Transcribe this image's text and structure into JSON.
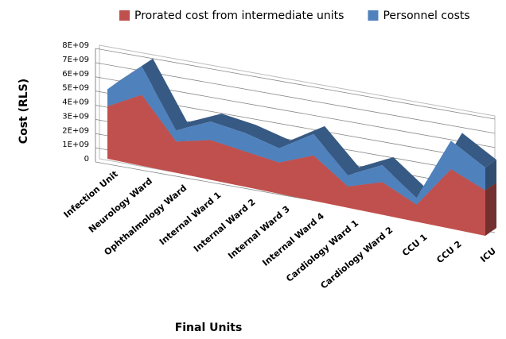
{
  "chart_data": {
    "type": "area3d",
    "categories": [
      "Infection Unit",
      "Neurology Ward",
      "Ophthalmology Ward",
      "Internal Ward 1",
      "Internal Ward 2",
      "Internal Ward 3",
      "Internal Ward 4",
      "Cardiology Ward 1",
      "Cardiology Ward 2",
      "CCU 1",
      "CCU 2",
      "ICU"
    ],
    "series": [
      {
        "name": "Prorated cost from intermediate units",
        "color": "#c0504d",
        "values": [
          3700000000,
          5000000000,
          2200000000,
          2800000000,
          2500000000,
          2200000000,
          3200000000,
          1500000000,
          2300000000,
          1200000000,
          4200000000,
          3200000000
        ]
      },
      {
        "name": "Personnel costs",
        "color": "#4f81bd",
        "values": [
          1200000000,
          2000000000,
          800000000,
          1300000000,
          1300000000,
          1000000000,
          1500000000,
          800000000,
          1200000000,
          500000000,
          2000000000,
          1600000000
        ]
      }
    ],
    "stacked": true,
    "ylabel": "Cost (RLS)",
    "xlabel": "Final Units",
    "ylim": [
      0,
      8000000000
    ],
    "yticks": [
      0,
      {
        "value": 1000000000,
        "label": "1E+09"
      },
      {
        "value": 2000000000,
        "label": "2E+09"
      },
      {
        "value": 3000000000,
        "label": "3E+09"
      },
      {
        "value": 4000000000,
        "label": "4E+09"
      },
      {
        "value": 5000000000,
        "label": "5E+09"
      },
      {
        "value": 6000000000,
        "label": "6E+09"
      },
      {
        "value": 7000000000,
        "label": "7E+09"
      },
      {
        "value": 8000000000,
        "label": "8E+09"
      }
    ],
    "grid": true,
    "legend": "top"
  }
}
